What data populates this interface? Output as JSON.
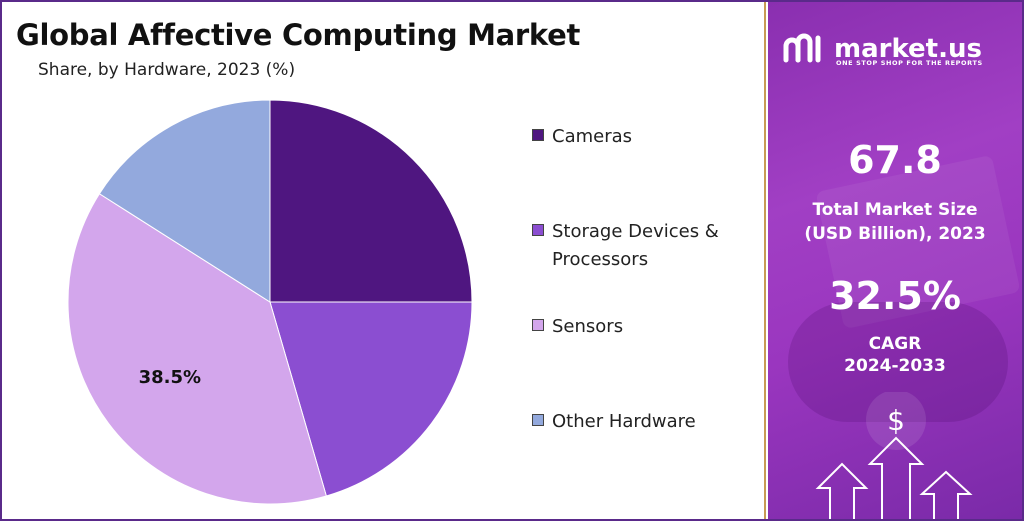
{
  "chart_data": {
    "type": "pie",
    "title": "Global Affective Computing Market",
    "subtitle": "Share, by Hardware, 2023 (%)",
    "categories": [
      "Cameras",
      "Storage Devices & Processors",
      "Sensors",
      "Other Hardware"
    ],
    "values": [
      25.0,
      20.5,
      38.5,
      16.0
    ],
    "data_labels": [
      "",
      "",
      "38.5%",
      ""
    ],
    "colors": [
      "#4f1680",
      "#8b4ed1",
      "#d3a6ec",
      "#93a9dd"
    ],
    "legend_position": "right",
    "legend_lines": [
      [
        "Cameras"
      ],
      [
        "Storage Devices &",
        "Processors"
      ],
      [
        "Sensors"
      ],
      [
        "Other Hardware"
      ]
    ]
  },
  "brand": {
    "name": "market.us",
    "tagline": "ONE STOP SHOP FOR THE REPORTS"
  },
  "stats": {
    "market_size_value": "67.8",
    "market_size_label_1": "Total Market Size",
    "market_size_label_2": "(USD Billion), 2023",
    "cagr_value": "32.5%",
    "cagr_label_1": "CAGR",
    "cagr_label_2": "2024-2033"
  },
  "icons": [
    "dollar-icon",
    "up-arrow-icon"
  ]
}
